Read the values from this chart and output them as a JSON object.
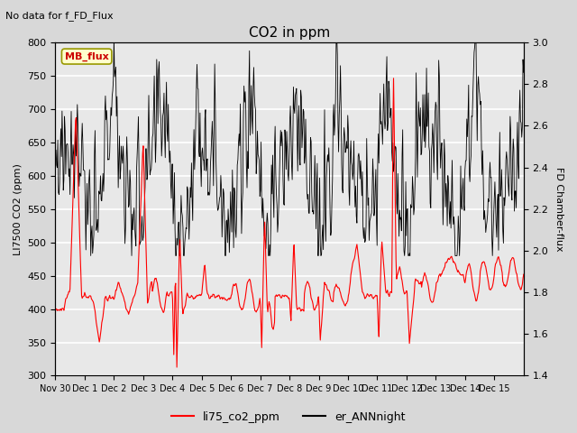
{
  "title": "CO2 in ppm",
  "top_left_text": "No data for f_FD_Flux",
  "ylabel_left": "LI7500 CO2 (ppm)",
  "ylabel_right": "FD Chamber-flux",
  "ylim_left": [
    300,
    800
  ],
  "ylim_right": [
    1.4,
    3.0
  ],
  "yticks_left": [
    300,
    350,
    400,
    450,
    500,
    550,
    600,
    650,
    700,
    750,
    800
  ],
  "yticks_right": [
    1.4,
    1.6,
    1.8,
    2.0,
    2.2,
    2.4,
    2.6,
    2.8,
    3.0
  ],
  "legend_label_red": "li75_co2_ppm",
  "legend_label_black": "er_ANNnight",
  "annotation_text": "MB_flux",
  "annotation_color": "#cc0000",
  "annotation_bg": "#ffffcc",
  "annotation_border": "#999900",
  "background_color": "#d8d8d8",
  "plot_bg_color": "#e8e8e8",
  "grid_color": "#ffffff",
  "figsize": [
    6.4,
    4.8
  ],
  "dpi": 100
}
